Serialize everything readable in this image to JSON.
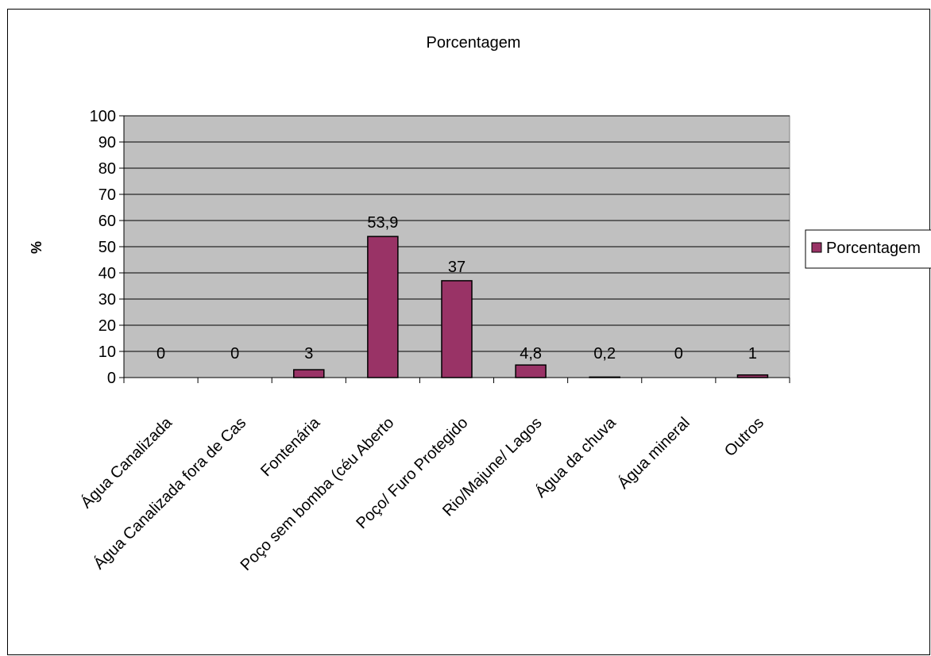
{
  "chart_data": {
    "type": "bar",
    "title": "Porcentagem",
    "ylabel": "%",
    "xlabel": "",
    "ylim": [
      0,
      100
    ],
    "yticks": [
      0,
      10,
      20,
      30,
      40,
      50,
      60,
      70,
      80,
      90,
      100
    ],
    "categories": [
      "Água Canalizada",
      "Água Canalizada fora de Cas",
      "Fontenária",
      "Poço sem bomba (céu Aberto",
      "Poço/ Furo Protegido",
      "Rio/Majune/ Lagos",
      "Água da chuva",
      "Água mineral",
      "Outros"
    ],
    "series": [
      {
        "name": "Porcentagem",
        "values": [
          0,
          0,
          3,
          53.9,
          37,
          4.8,
          0.2,
          0,
          1
        ],
        "labels": [
          "0",
          "0",
          "3",
          "53,9",
          "37",
          "4,8",
          "0,2",
          "0",
          "1"
        ],
        "color": "#993366"
      }
    ],
    "grid": true,
    "plot_background": "#c0c0c0",
    "legend": "right"
  }
}
